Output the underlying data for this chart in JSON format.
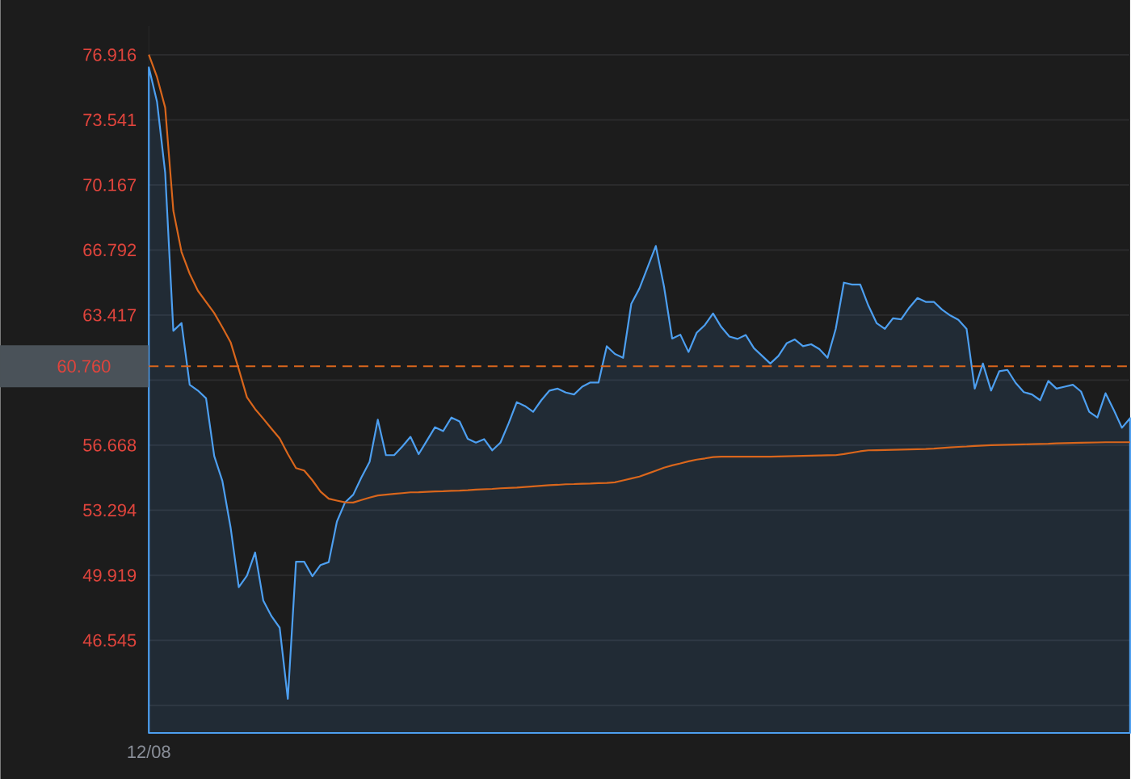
{
  "chart_data": {
    "type": "line",
    "categories": [
      "12/08",
      null,
      null,
      null,
      null,
      null,
      null,
      null,
      null,
      null,
      null,
      null,
      null,
      null,
      null,
      null,
      null,
      null,
      null,
      null,
      null,
      null,
      null,
      null,
      null,
      null,
      null,
      null,
      null,
      null,
      null,
      null,
      null,
      null,
      null,
      null,
      null,
      null,
      null,
      null,
      null,
      null,
      null,
      null,
      null,
      null,
      null,
      null,
      null,
      null,
      null,
      null,
      null,
      null,
      null,
      null,
      null,
      null,
      null,
      null,
      null,
      null,
      null,
      null,
      null,
      null,
      null,
      null,
      null,
      null,
      null,
      null,
      null,
      null,
      null,
      null,
      null,
      null,
      null,
      null,
      null,
      null,
      null,
      null,
      null,
      null,
      null,
      null,
      null,
      null,
      null,
      null,
      null,
      null,
      null,
      null,
      null,
      null,
      null,
      null,
      null,
      null,
      null,
      null,
      null,
      null,
      null,
      null,
      null,
      null,
      null,
      null,
      null,
      null,
      null,
      null,
      null,
      null,
      null,
      null,
      null
    ],
    "ylim": [
      41.74,
      78.42
    ],
    "yticks": [
      {
        "value": 76.916,
        "label": "76.916"
      },
      {
        "value": 73.541,
        "label": "73.541"
      },
      {
        "value": 70.167,
        "label": "70.167"
      },
      {
        "value": 66.792,
        "label": "66.792"
      },
      {
        "value": 63.417,
        "label": "63.417"
      },
      {
        "value": 60.042,
        "label": null
      },
      {
        "value": 56.668,
        "label": "56.668"
      },
      {
        "value": 53.294,
        "label": "53.294"
      },
      {
        "value": 49.919,
        "label": "49.919"
      },
      {
        "value": 46.545,
        "label": "46.545"
      },
      {
        "value": 43.17,
        "label": null
      }
    ],
    "grid": "y",
    "ref_lines": [
      {
        "axis": "y",
        "value": 60.76,
        "label": "60.760",
        "color": "#d9661c",
        "line_style": "dashed"
      }
    ],
    "series": [
      {
        "type": "area",
        "color": "#4d9ff0",
        "values": [
          76.27,
          74.49,
          70.8,
          62.6,
          63.0,
          59.8,
          59.5,
          59.1,
          56.1,
          54.8,
          52.4,
          49.3,
          49.9,
          51.1,
          48.6,
          47.8,
          47.2,
          43.51,
          50.62,
          50.62,
          49.87,
          50.45,
          50.6,
          52.7,
          53.7,
          54.1,
          55.0,
          55.8,
          57.99,
          56.15,
          56.15,
          56.6,
          57.1,
          56.2,
          56.9,
          57.6,
          57.4,
          58.1,
          57.9,
          57.0,
          56.8,
          56.98,
          56.4,
          56.8,
          57.8,
          58.9,
          58.7,
          58.4,
          59.0,
          59.5,
          59.6,
          59.4,
          59.3,
          59.7,
          59.92,
          59.92,
          61.8,
          61.4,
          61.2,
          64.0,
          64.8,
          65.9,
          67.0,
          64.9,
          62.2,
          62.4,
          61.5,
          62.5,
          62.9,
          63.5,
          62.8,
          62.3,
          62.18,
          62.38,
          61.7,
          61.3,
          60.9,
          61.3,
          61.95,
          62.15,
          61.8,
          61.9,
          61.65,
          61.2,
          62.7,
          65.1,
          65.0,
          65.0,
          63.9,
          63.0,
          62.7,
          63.25,
          63.2,
          63.8,
          64.3,
          64.1,
          64.1,
          63.7,
          63.4,
          63.17,
          62.7,
          59.6,
          60.9,
          59.5,
          60.5,
          60.57,
          59.9,
          59.42,
          59.3,
          59.0,
          60.0,
          59.6,
          59.7,
          59.8,
          59.45,
          58.4,
          58.1,
          59.36,
          58.5,
          57.57,
          58.07
        ]
      },
      {
        "color": "#d9661c",
        "values": [
          76.92,
          75.77,
          74.18,
          68.83,
          66.69,
          65.56,
          64.68,
          64.1,
          63.52,
          62.78,
          62.01,
          60.61,
          59.15,
          58.54,
          58.04,
          57.52,
          57.02,
          56.21,
          55.48,
          55.35,
          54.85,
          54.26,
          53.89,
          53.79,
          53.7,
          53.69,
          53.82,
          53.95,
          54.06,
          54.1,
          54.14,
          54.18,
          54.22,
          54.23,
          54.25,
          54.27,
          54.28,
          54.3,
          54.31,
          54.33,
          54.36,
          54.38,
          54.4,
          54.43,
          54.45,
          54.47,
          54.5,
          54.53,
          54.56,
          54.59,
          54.61,
          54.64,
          54.65,
          54.67,
          54.68,
          54.7,
          54.71,
          54.74,
          54.84,
          54.94,
          55.04,
          55.19,
          55.34,
          55.5,
          55.62,
          55.72,
          55.83,
          55.92,
          55.98,
          56.05,
          56.07,
          56.07,
          56.07,
          56.07,
          56.07,
          56.07,
          56.07,
          56.08,
          56.09,
          56.1,
          56.11,
          56.12,
          56.13,
          56.14,
          56.15,
          56.21,
          56.28,
          56.35,
          56.4,
          56.41,
          56.42,
          56.43,
          56.44,
          56.45,
          56.46,
          56.47,
          56.49,
          56.52,
          56.55,
          56.58,
          56.6,
          56.63,
          56.65,
          56.67,
          56.68,
          56.69,
          56.7,
          56.71,
          56.72,
          56.73,
          56.74,
          56.76,
          56.77,
          56.78,
          56.79,
          56.8,
          56.81,
          56.82,
          56.82,
          56.82,
          56.82
        ]
      }
    ]
  }
}
